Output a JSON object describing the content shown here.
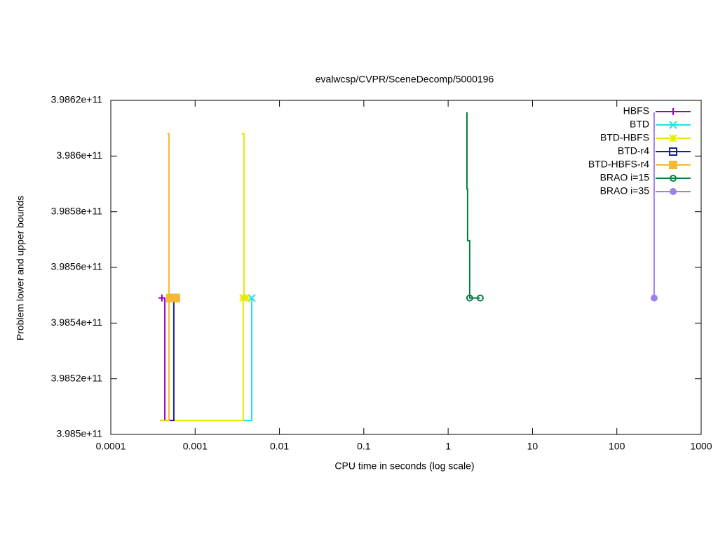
{
  "chart_data": {
    "type": "line",
    "title": "evalwcsp/CVPR/SceneDecomp/5000196",
    "xlabel": "CPU time in seconds (log scale)",
    "ylabel": "Problem lower and upper bounds",
    "xscale": "log",
    "xlim": [
      0.0001,
      1000
    ],
    "xticks": [
      0.0001,
      0.001,
      0.01,
      0.1,
      1,
      10,
      100,
      1000
    ],
    "ylim": [
      398500000000,
      398620000000
    ],
    "yticks": [
      {
        "value": 398500000000,
        "label": "3.985e+11"
      },
      {
        "value": 398520000000,
        "label": "3.9852e+11"
      },
      {
        "value": 398540000000,
        "label": "3.9854e+11"
      },
      {
        "value": 398560000000,
        "label": "3.9856e+11"
      },
      {
        "value": 398580000000,
        "label": "3.9858e+11"
      },
      {
        "value": 398600000000,
        "label": "3.986e+11"
      },
      {
        "value": 398620000000,
        "label": "3.9862e+11"
      }
    ],
    "legend": "top-right",
    "series": [
      {
        "name": "HBFS",
        "color": "#9400d3",
        "marker": "plus",
        "x": [
          0.000389,
          0.000437,
          0.000437
        ],
        "values": [
          398549000000,
          398549000000,
          398505000000
        ],
        "marker_x": [
          0.000404
        ],
        "marker_y": [
          398549000000
        ]
      },
      {
        "name": "BTD",
        "color": "#22e0e0",
        "marker": "cross",
        "x": [
          0.00372,
          0.00469,
          0.00469
        ],
        "values": [
          398505000000,
          398505000000,
          398549000000
        ],
        "marker_x": [
          0.00469
        ],
        "marker_y": [
          398549000000
        ]
      },
      {
        "name": "BTD-HBFS",
        "color": "#e8e800",
        "marker": "star",
        "x": [
          0.00355,
          0.0038,
          0.0038,
          null,
          0.00049,
          0.00372,
          0.00372
        ],
        "values": [
          398608000000,
          398608000000,
          398549000000,
          null,
          398505000000,
          398505000000,
          398549000000
        ],
        "marker_x": [
          0.00372,
          0.00402
        ],
        "marker_y": [
          398549000000,
          398549000000
        ]
      },
      {
        "name": "BTD-r4",
        "color": "#1c1ca0",
        "marker": "square",
        "x": [
          0.00049,
          0.000559,
          0.000559
        ],
        "values": [
          398505000000,
          398505000000,
          398549000000
        ],
        "marker_x": [
          0.000559
        ],
        "marker_y": [
          398549000000
        ]
      },
      {
        "name": "BTD-HBFS-r4",
        "color": "#f8b830",
        "marker": "filled-square",
        "x": [
          0.00047,
          0.00049,
          0.00049,
          null,
          0.000382,
          0.00049,
          0.00049
        ],
        "values": [
          398608000000,
          398608000000,
          398549000000,
          null,
          398505000000,
          398505000000,
          398549000000
        ],
        "marker_x": [
          0.000508,
          0.000593
        ],
        "marker_y": [
          398549000000,
          398549000000
        ]
      },
      {
        "name": "BRAO i=15",
        "color": "#087a40",
        "marker": "circle",
        "x": [
          1.67,
          1.67,
          1.7,
          1.7,
          1.8,
          1.8,
          2.4
        ],
        "values": [
          398615700000,
          398588200000,
          398588200000,
          398569600000,
          398569600000,
          398549000000,
          398549000000
        ],
        "marker_x": [
          1.8,
          2.4
        ],
        "marker_y": [
          398549000000,
          398549000000
        ]
      },
      {
        "name": "BRAO i=35",
        "color": "#a080f0",
        "marker": "filled-circle",
        "x": [
          277,
          277
        ],
        "values": [
          398615700000,
          398549000000
        ],
        "marker_x": [
          277
        ],
        "marker_y": [
          398549000000
        ]
      }
    ]
  }
}
